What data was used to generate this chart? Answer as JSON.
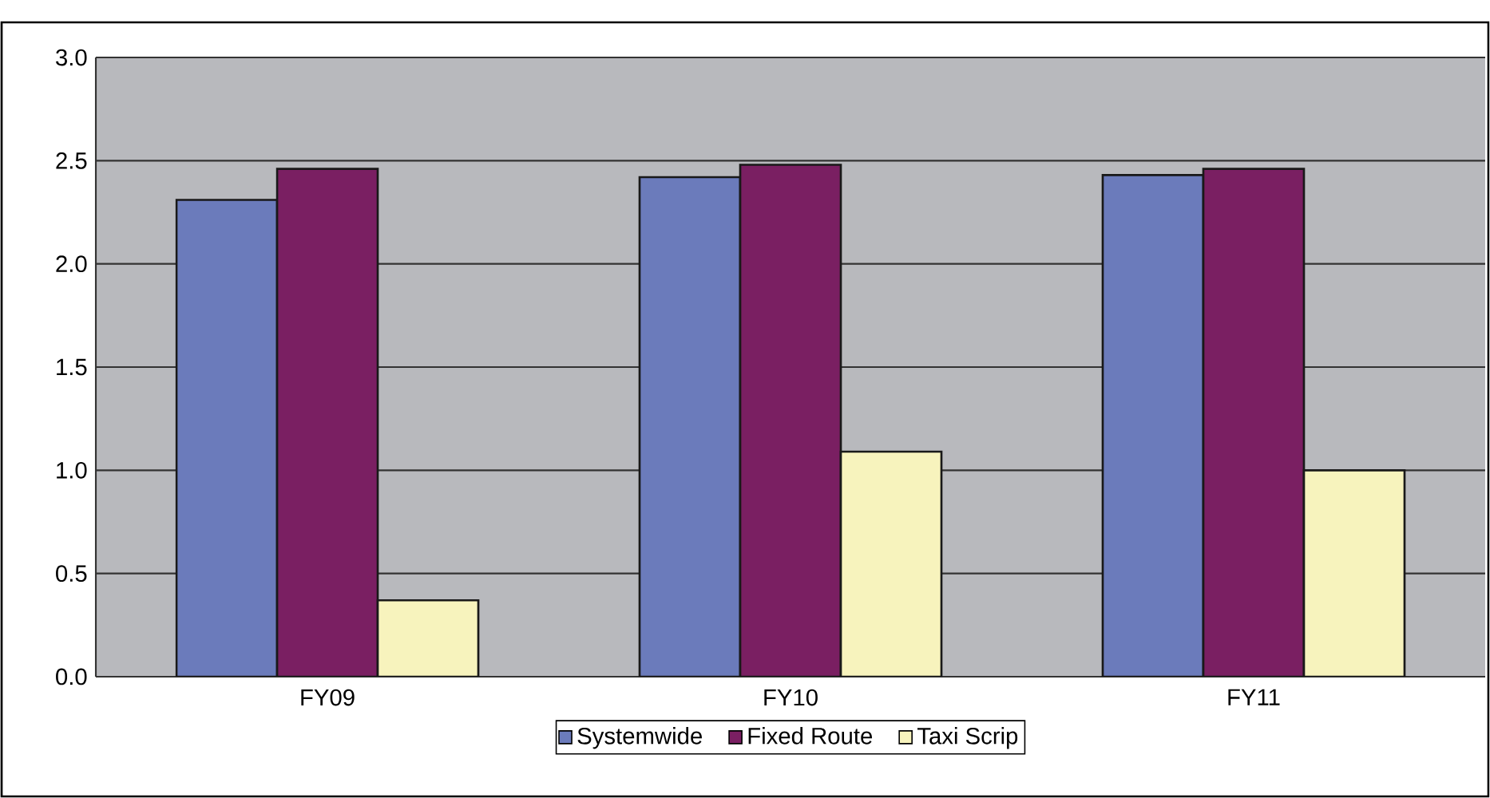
{
  "chart_data": {
    "type": "bar",
    "categories": [
      "FY09",
      "FY10",
      "FY11"
    ],
    "series": [
      {
        "name": "Systemwide",
        "color": "#6b7bbb",
        "values": [
          2.31,
          2.42,
          2.43
        ]
      },
      {
        "name": "Fixed Route",
        "color": "#7a1f62",
        "values": [
          2.46,
          2.48,
          2.46
        ]
      },
      {
        "name": "Taxi Scrip",
        "color": "#f7f3bd",
        "values": [
          0.37,
          1.09,
          1.0
        ]
      }
    ],
    "ylim": [
      0,
      3
    ],
    "yticks": [
      {
        "value": 0,
        "label": "0.0"
      },
      {
        "value": 0.5,
        "label": "0.5"
      },
      {
        "value": 1,
        "label": "1.0"
      },
      {
        "value": 1.5,
        "label": "1.5"
      },
      {
        "value": 2,
        "label": "2.0"
      },
      {
        "value": 2.5,
        "label": "2.5"
      },
      {
        "value": 3,
        "label": "3.0"
      }
    ],
    "grid": "y",
    "legend": "bottom"
  }
}
